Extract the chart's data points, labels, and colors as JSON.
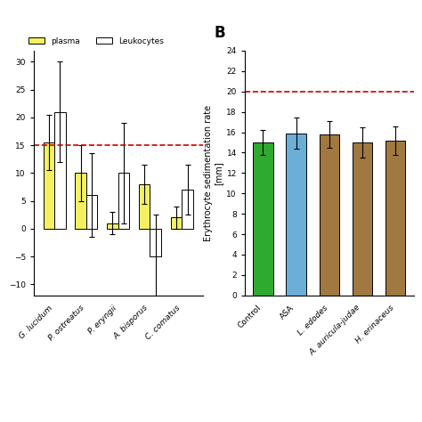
{
  "panel_b": {
    "title": "B",
    "categories": [
      "Control",
      "ASA",
      "L. edodes",
      "A. auricula-judae",
      "H. erinaceus"
    ],
    "values": [
      15.0,
      15.9,
      15.8,
      15.0,
      15.2
    ],
    "errors": [
      1.2,
      1.5,
      1.3,
      1.5,
      1.4
    ],
    "colors": [
      "#2eab2e",
      "#6baed6",
      "#a07840",
      "#a07840",
      "#a07840"
    ],
    "ylabel": "Erythrocyte sedimentation rate\n[mm]",
    "ylim": [
      0,
      24
    ],
    "yticks": [
      0,
      2,
      4,
      6,
      8,
      10,
      12,
      14,
      16,
      18,
      20,
      22,
      24
    ],
    "dashed_line": 20,
    "dashed_color": "#cc0000"
  },
  "panel_a": {
    "categories": [
      "G. lucidum",
      "P. ostreatus",
      "P. eryngii",
      "A. bisporus",
      "C. comatus"
    ],
    "plasma_values": [
      15.5,
      10.0,
      1.0,
      8.0,
      2.0
    ],
    "plasma_errors": [
      5.0,
      5.0,
      2.0,
      3.5,
      2.0
    ],
    "leuko_values": [
      21.0,
      6.0,
      10.0,
      -5.0,
      7.0
    ],
    "leuko_errors": [
      9.0,
      7.5,
      9.0,
      7.5,
      4.5
    ],
    "plasma_color": "#f5f060",
    "leuko_color": "#ffffff",
    "ylim": [
      -12,
      32
    ],
    "dashed_line": 15.0,
    "dashed_color": "#cc0000",
    "legend_plasma": "plasma",
    "legend_leuko": "Leukocytes"
  }
}
